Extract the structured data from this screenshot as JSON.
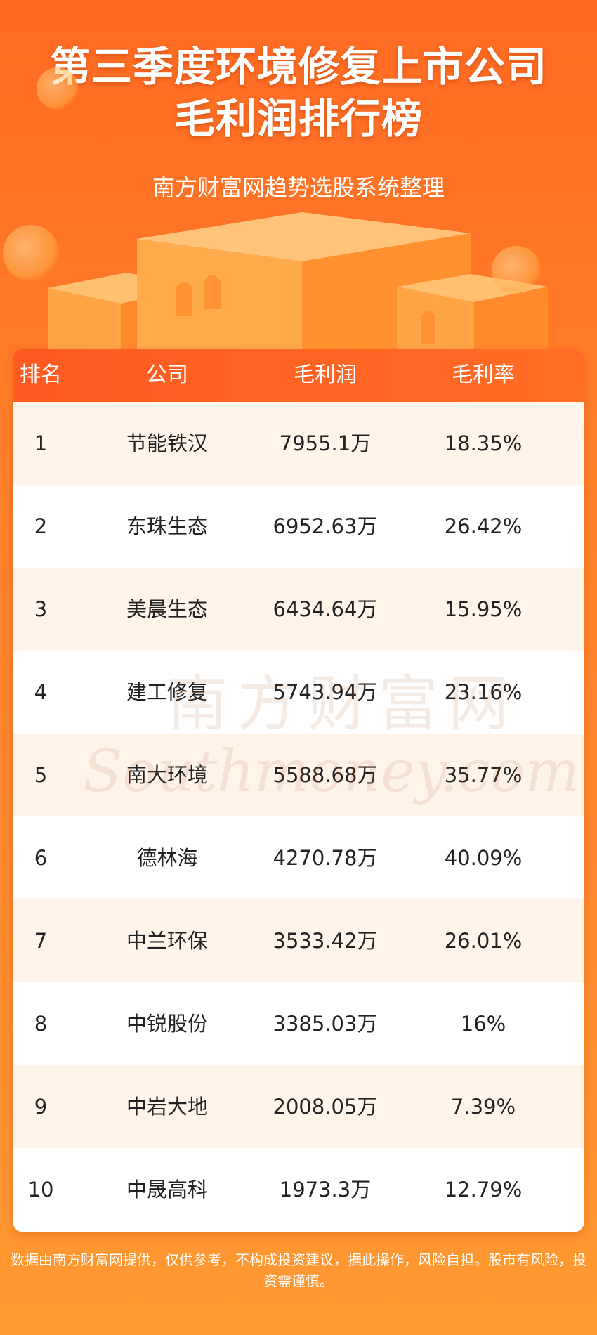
{
  "header": {
    "title_line1": "第三季度环境修复上市公司",
    "title_line2": "毛利润排行榜",
    "subtitle": "南方财富网趋势选股系统整理"
  },
  "table": {
    "columns": [
      "排名",
      "公司",
      "毛利润",
      "毛利率"
    ],
    "rows": [
      {
        "rank": "1",
        "company": "节能铁汉",
        "gross_profit": "7955.1万",
        "gross_margin": "18.35%"
      },
      {
        "rank": "2",
        "company": "东珠生态",
        "gross_profit": "6952.63万",
        "gross_margin": "26.42%"
      },
      {
        "rank": "3",
        "company": "美晨生态",
        "gross_profit": "6434.64万",
        "gross_margin": "15.95%"
      },
      {
        "rank": "4",
        "company": "建工修复",
        "gross_profit": "5743.94万",
        "gross_margin": "23.16%"
      },
      {
        "rank": "5",
        "company": "南大环境",
        "gross_profit": "5588.68万",
        "gross_margin": "35.77%"
      },
      {
        "rank": "6",
        "company": "德林海",
        "gross_profit": "4270.78万",
        "gross_margin": "40.09%"
      },
      {
        "rank": "7",
        "company": "中兰环保",
        "gross_profit": "3533.42万",
        "gross_margin": "26.01%"
      },
      {
        "rank": "8",
        "company": "中锐股份",
        "gross_profit": "3385.03万",
        "gross_margin": "16%"
      },
      {
        "rank": "9",
        "company": "中岩大地",
        "gross_profit": "2008.05万",
        "gross_margin": "7.39%"
      },
      {
        "rank": "10",
        "company": "中晟高科",
        "gross_profit": "1973.3万",
        "gross_margin": "12.79%"
      }
    ]
  },
  "watermark": {
    "line1": "南方财富网",
    "line2": "Southmoney.com"
  },
  "footer": {
    "disclaimer": "数据由南方财富网提供，仅供参考，不构成投资建议，据此操作，风险自担。股市有风险，投资需谨慎。"
  },
  "colors": {
    "header_bg": "#ff6a22",
    "table_header": "#ff5a20",
    "row_alt": "#fff4ea"
  }
}
